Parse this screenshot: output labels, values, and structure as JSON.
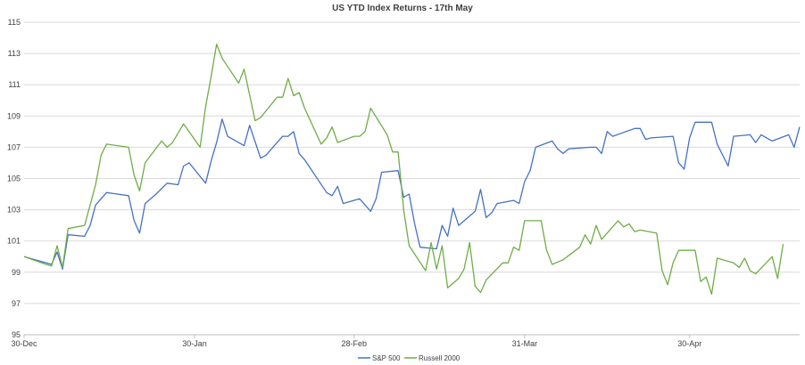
{
  "chart_data": {
    "type": "line",
    "title": "US YTD Index Returns - 17th May",
    "xlabel": "",
    "ylabel": "",
    "ylim": [
      95,
      115
    ],
    "yticks": [
      "95",
      "97",
      "99",
      "101",
      "103",
      "105",
      "107",
      "109",
      "111",
      "113",
      "115"
    ],
    "xticks": [
      {
        "label": "30-Dec",
        "x": 0
      },
      {
        "label": "30-Jan",
        "x": 31
      },
      {
        "label": "28-Feb",
        "x": 60
      },
      {
        "label": "31-Mar",
        "x": 91
      },
      {
        "label": "30-Apr",
        "x": 121
      }
    ],
    "xlim": [
      0,
      138
    ],
    "x_unit": "days since 30-Dec",
    "grid": "horizontal",
    "legend": "bottom",
    "series": [
      {
        "name": "S&P 500",
        "color": "#4472c4",
        "points": [
          [
            0,
            100.0
          ],
          [
            4,
            99.6
          ],
          [
            5,
            99.5
          ],
          [
            6,
            100.3
          ],
          [
            7,
            99.2
          ],
          [
            8,
            101.4
          ],
          [
            11,
            101.3
          ],
          [
            12,
            102.0
          ],
          [
            13,
            103.3
          ],
          [
            15,
            104.1
          ],
          [
            19,
            103.9
          ],
          [
            20,
            102.3
          ],
          [
            21,
            101.5
          ],
          [
            22,
            103.4
          ],
          [
            24,
            104.0
          ],
          [
            26,
            104.7
          ],
          [
            28,
            104.6
          ],
          [
            29,
            105.8
          ],
          [
            30,
            106.0
          ],
          [
            33,
            104.7
          ],
          [
            34,
            106.1
          ],
          [
            35,
            107.3
          ],
          [
            36,
            108.8
          ],
          [
            37,
            107.7
          ],
          [
            40,
            107.1
          ],
          [
            41,
            108.4
          ],
          [
            43,
            106.3
          ],
          [
            44,
            106.5
          ],
          [
            46,
            107.3
          ],
          [
            47,
            107.7
          ],
          [
            48,
            107.7
          ],
          [
            49,
            108.0
          ],
          [
            50,
            106.6
          ],
          [
            51,
            106.2
          ],
          [
            55,
            104.1
          ],
          [
            56,
            103.9
          ],
          [
            57,
            104.5
          ],
          [
            58,
            103.4
          ],
          [
            61,
            103.7
          ],
          [
            63,
            102.9
          ],
          [
            64,
            103.7
          ],
          [
            65,
            105.4
          ],
          [
            68,
            105.5
          ],
          [
            69,
            103.8
          ],
          [
            70,
            104.0
          ],
          [
            71,
            102.1
          ],
          [
            72,
            100.6
          ],
          [
            75,
            100.5
          ],
          [
            76,
            102.0
          ],
          [
            77,
            101.3
          ],
          [
            78,
            103.1
          ],
          [
            79,
            102.0
          ],
          [
            82,
            102.9
          ],
          [
            83,
            104.3
          ],
          [
            84,
            102.5
          ],
          [
            85,
            102.8
          ],
          [
            86,
            103.4
          ],
          [
            89,
            103.6
          ],
          [
            90,
            103.4
          ],
          [
            91,
            104.8
          ],
          [
            92,
            105.5
          ],
          [
            93,
            107.0
          ],
          [
            96,
            107.4
          ],
          [
            97,
            106.9
          ],
          [
            98,
            106.6
          ],
          [
            99,
            106.9
          ],
          [
            103,
            107.0
          ],
          [
            104,
            107.0
          ],
          [
            105,
            106.6
          ],
          [
            106,
            108.0
          ],
          [
            107,
            107.7
          ],
          [
            111,
            108.2
          ],
          [
            112,
            108.2
          ],
          [
            113,
            107.5
          ],
          [
            114,
            107.6
          ],
          [
            118,
            107.7
          ],
          [
            119,
            106.0
          ],
          [
            120,
            105.6
          ],
          [
            121,
            107.6
          ],
          [
            122,
            108.6
          ],
          [
            125,
            108.6
          ],
          [
            126,
            107.2
          ],
          [
            128,
            105.8
          ],
          [
            129,
            107.7
          ],
          [
            132,
            107.8
          ],
          [
            133,
            107.3
          ],
          [
            134,
            107.8
          ],
          [
            136,
            107.4
          ],
          [
            139,
            107.8
          ],
          [
            140,
            107.0
          ],
          [
            141,
            108.3
          ]
        ]
      },
      {
        "name": "Russell 2000",
        "color": "#70ad47",
        "points": [
          [
            0,
            100.0
          ],
          [
            4,
            99.5
          ],
          [
            5,
            99.4
          ],
          [
            6,
            100.7
          ],
          [
            7,
            99.3
          ],
          [
            8,
            101.8
          ],
          [
            11,
            102.0
          ],
          [
            12,
            103.3
          ],
          [
            13,
            104.6
          ],
          [
            14,
            106.5
          ],
          [
            15,
            107.2
          ],
          [
            19,
            107.0
          ],
          [
            20,
            105.2
          ],
          [
            21,
            104.2
          ],
          [
            22,
            106.0
          ],
          [
            25,
            107.4
          ],
          [
            26,
            107.0
          ],
          [
            27,
            107.3
          ],
          [
            29,
            108.5
          ],
          [
            32,
            107.0
          ],
          [
            33,
            109.6
          ],
          [
            34,
            111.5
          ],
          [
            35,
            113.6
          ],
          [
            36,
            112.7
          ],
          [
            39,
            111.1
          ],
          [
            40,
            112.0
          ],
          [
            42,
            108.7
          ],
          [
            43,
            108.9
          ],
          [
            46,
            110.2
          ],
          [
            47,
            110.2
          ],
          [
            48,
            111.4
          ],
          [
            49,
            110.3
          ],
          [
            50,
            110.5
          ],
          [
            51,
            109.5
          ],
          [
            54,
            107.2
          ],
          [
            55,
            107.6
          ],
          [
            56,
            108.3
          ],
          [
            57,
            107.3
          ],
          [
            60,
            107.7
          ],
          [
            61,
            107.7
          ],
          [
            62,
            108.0
          ],
          [
            63,
            109.5
          ],
          [
            66,
            107.8
          ],
          [
            67,
            106.7
          ],
          [
            68,
            106.7
          ],
          [
            69,
            103.0
          ],
          [
            70,
            100.7
          ],
          [
            73,
            99.1
          ],
          [
            74,
            100.9
          ],
          [
            75,
            99.2
          ],
          [
            76,
            100.7
          ],
          [
            77,
            98.0
          ],
          [
            79,
            98.6
          ],
          [
            80,
            99.2
          ],
          [
            81,
            100.9
          ],
          [
            82,
            98.1
          ],
          [
            83,
            97.7
          ],
          [
            84,
            98.5
          ],
          [
            87,
            99.6
          ],
          [
            88,
            99.6
          ],
          [
            89,
            100.6
          ],
          [
            90,
            100.4
          ],
          [
            91,
            102.3
          ],
          [
            94,
            102.3
          ],
          [
            95,
            100.4
          ],
          [
            96,
            99.5
          ],
          [
            98,
            99.8
          ],
          [
            101,
            100.6
          ],
          [
            102,
            101.4
          ],
          [
            103,
            100.8
          ],
          [
            104,
            102.0
          ],
          [
            105,
            101.1
          ],
          [
            108,
            102.3
          ],
          [
            109,
            101.9
          ],
          [
            110,
            102.1
          ],
          [
            111,
            101.6
          ],
          [
            112,
            101.7
          ],
          [
            115,
            101.5
          ],
          [
            116,
            99.1
          ],
          [
            117,
            98.2
          ],
          [
            118,
            99.6
          ],
          [
            119,
            100.4
          ],
          [
            122,
            100.4
          ],
          [
            123,
            98.4
          ],
          [
            124,
            98.7
          ],
          [
            125,
            97.6
          ],
          [
            126,
            99.9
          ],
          [
            129,
            99.6
          ],
          [
            130,
            99.3
          ],
          [
            131,
            99.9
          ],
          [
            132,
            99.1
          ],
          [
            133,
            98.9
          ],
          [
            136,
            100.0
          ],
          [
            137,
            98.6
          ],
          [
            138,
            100.8
          ]
        ]
      }
    ]
  }
}
